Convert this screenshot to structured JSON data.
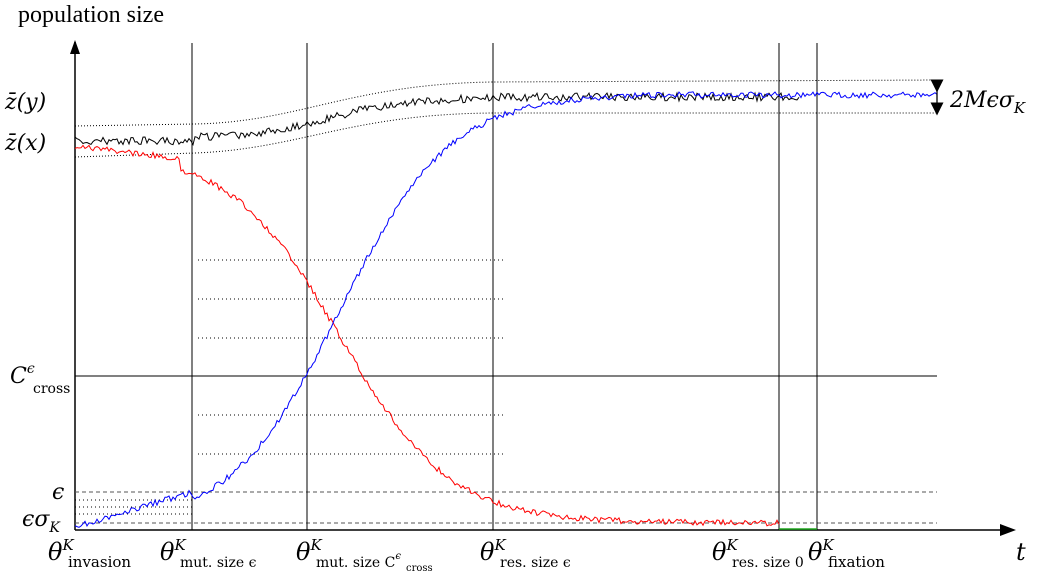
{
  "title": "population size",
  "x_axis_symbol": "t",
  "y_labels": {
    "z_y": "z̄(y)",
    "z_x": "z̄(x)",
    "c_cross_base": "C",
    "c_cross_sup": "ϵ",
    "c_cross_sub": "cross",
    "epsilon": "ϵ",
    "eps_sigma": "ϵσ",
    "eps_sigma_sub": "K"
  },
  "band_width_label": "2MϵσK",
  "band_width_parts": {
    "base": "2Mϵσ",
    "sub": "K"
  },
  "theta": {
    "symbol": "θ",
    "sup": "K",
    "invasion": "invasion",
    "mut_size_eps": "mut. size ϵ",
    "mut_size_c_cross_base": "mut. size C",
    "mut_size_c_cross_sup": "ϵ",
    "mut_size_c_cross_sub": "cross",
    "res_size_eps": "res. size ϵ",
    "res_size_0": "res. size 0",
    "fixation": "fixation"
  },
  "colors": {
    "resident": "#ff0000",
    "mutant": "#0000ff",
    "total": "#000000",
    "extinct": "#22aa22"
  }
}
